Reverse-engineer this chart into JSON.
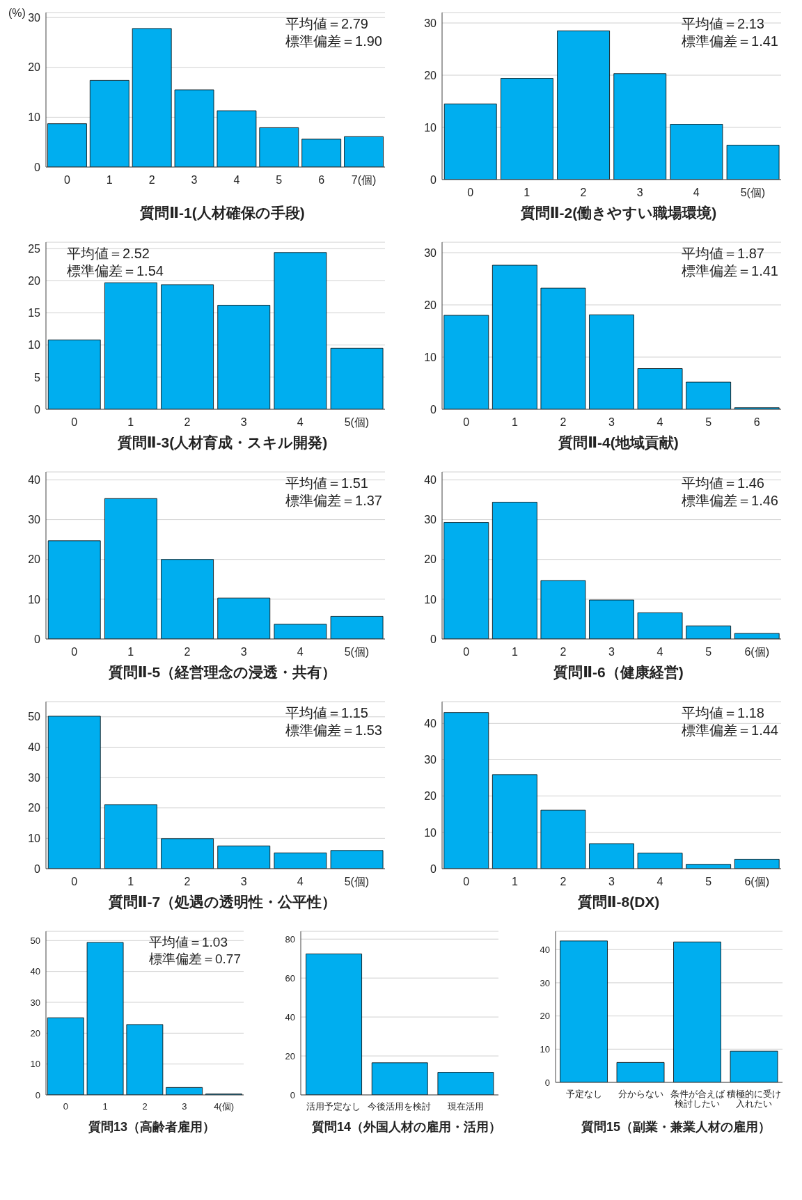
{
  "chart_data": [
    {
      "type": "bar",
      "xlabel": "質問Ⅱ-1(人材確保の手段)",
      "ylabel": "(%)",
      "categories": [
        "0",
        "1",
        "2",
        "3",
        "4",
        "5",
        "6",
        "7(個)"
      ],
      "values": [
        8.7,
        17.4,
        27.8,
        15.5,
        11.3,
        7.9,
        5.6,
        6.1
      ],
      "color": "#00aeef",
      "ylim": [
        0,
        31
      ],
      "yticks": [
        0,
        10,
        20,
        30
      ],
      "grid": "y",
      "annotations": [
        "平均値＝2.79",
        "標準偏差＝1.90"
      ]
    },
    {
      "type": "bar",
      "xlabel": "質問Ⅱ-2(働きやすい職場環境)",
      "categories": [
        "0",
        "1",
        "2",
        "3",
        "4",
        "5(個)"
      ],
      "values": [
        14.5,
        19.4,
        28.5,
        20.3,
        10.6,
        6.6
      ],
      "color": "#00aeef",
      "ylim": [
        0,
        32
      ],
      "yticks": [
        0,
        10,
        20,
        30
      ],
      "grid": "y",
      "annotations": [
        "平均値＝2.13",
        "標準偏差＝1.41"
      ]
    },
    {
      "type": "bar",
      "xlabel": "質問Ⅱ-3(人材育成・スキル開発)",
      "categories": [
        "0",
        "1",
        "2",
        "3",
        "4",
        "5(個)"
      ],
      "values": [
        10.8,
        19.7,
        19.4,
        16.2,
        24.4,
        9.5
      ],
      "color": "#00aeef",
      "ylim": [
        0,
        26
      ],
      "yticks": [
        0,
        5,
        10,
        15,
        20,
        25
      ],
      "grid": "y",
      "annotations": [
        "平均値＝2.52",
        "標準偏差＝1.54"
      ]
    },
    {
      "type": "bar",
      "xlabel": "質問Ⅱ-4(地域貢献)",
      "categories": [
        "0",
        "1",
        "2",
        "3",
        "4",
        "5",
        "6"
      ],
      "values": [
        18.0,
        27.6,
        23.2,
        18.1,
        7.8,
        5.2,
        0.3
      ],
      "color": "#00aeef",
      "ylim": [
        0,
        32
      ],
      "yticks": [
        0,
        10,
        20,
        30
      ],
      "grid": "y",
      "annotations": [
        "平均値＝1.87",
        "標準偏差＝1.41"
      ]
    },
    {
      "type": "bar",
      "xlabel": "質問Ⅱ-5（経営理念の浸透・共有）",
      "categories": [
        "0",
        "1",
        "2",
        "3",
        "4",
        "5(個)"
      ],
      "values": [
        24.7,
        35.3,
        20.0,
        10.3,
        3.7,
        5.7
      ],
      "color": "#00aeef",
      "ylim": [
        0,
        42
      ],
      "yticks": [
        0,
        10,
        20,
        30,
        40
      ],
      "grid": "y",
      "annotations": [
        "平均値＝1.51",
        "標準偏差＝1.37"
      ]
    },
    {
      "type": "bar",
      "xlabel": "質問Ⅱ-6（健康経営)",
      "categories": [
        "0",
        "1",
        "2",
        "3",
        "4",
        "5",
        "6(個)"
      ],
      "values": [
        29.3,
        34.4,
        14.7,
        9.8,
        6.6,
        3.3,
        1.4
      ],
      "color": "#00aeef",
      "ylim": [
        0,
        42
      ],
      "yticks": [
        0,
        10,
        20,
        30,
        40
      ],
      "grid": "y",
      "annotations": [
        "平均値＝1.46",
        "標準偏差＝1.46"
      ]
    },
    {
      "type": "bar",
      "xlabel": "質問Ⅱ-7（処遇の透明性・公平性）",
      "categories": [
        "0",
        "1",
        "2",
        "3",
        "4",
        "5(個)"
      ],
      "values": [
        50.2,
        21.1,
        9.9,
        7.5,
        5.2,
        6.0
      ],
      "color": "#00aeef",
      "ylim": [
        0,
        55
      ],
      "yticks": [
        0,
        10,
        20,
        30,
        40,
        50
      ],
      "grid": "y",
      "annotations": [
        "平均値＝1.15",
        "標準偏差＝1.53"
      ]
    },
    {
      "type": "bar",
      "xlabel": "質問Ⅱ-8(DX)",
      "categories": [
        "0",
        "1",
        "2",
        "3",
        "4",
        "5",
        "6(個)"
      ],
      "values": [
        43.0,
        25.9,
        16.1,
        6.9,
        4.3,
        1.2,
        2.6
      ],
      "color": "#00aeef",
      "ylim": [
        0,
        46
      ],
      "yticks": [
        0,
        10,
        20,
        30,
        40
      ],
      "grid": "y",
      "annotations": [
        "平均値＝1.18",
        "標準偏差＝1.44"
      ]
    },
    {
      "type": "bar",
      "xlabel": "質問13（高齢者雇用）",
      "categories": [
        "0",
        "1",
        "2",
        "3",
        "4(個)"
      ],
      "values": [
        25.0,
        49.4,
        22.8,
        2.4,
        0.3
      ],
      "color": "#00aeef",
      "ylim": [
        0,
        53
      ],
      "yticks": [
        0,
        10,
        20,
        30,
        40,
        50
      ],
      "grid": "y",
      "annotations": [
        "平均値＝1.03",
        "標準偏差＝0.77"
      ]
    },
    {
      "type": "bar",
      "xlabel": "質問14（外国人材の雇用・活用）",
      "categories": [
        "活用予定なし",
        "今後活用を検討",
        "現在活用"
      ],
      "values": [
        72.4,
        16.5,
        11.6
      ],
      "color": "#00aeef",
      "ylim": [
        0,
        84
      ],
      "yticks": [
        0,
        20,
        40,
        60,
        80
      ],
      "grid": "y"
    },
    {
      "type": "bar",
      "xlabel": "質問15（副業・兼業人材の雇用）",
      "categories": [
        "予定なし",
        "分からない",
        "条件が合えば検討したい",
        "積極的に受け入れたい"
      ],
      "values": [
        42.6,
        6.0,
        42.3,
        9.4
      ],
      "color": "#00aeef",
      "ylim": [
        0,
        45.5
      ],
      "yticks": [
        0,
        10,
        20,
        30,
        40
      ],
      "grid": "y"
    }
  ]
}
